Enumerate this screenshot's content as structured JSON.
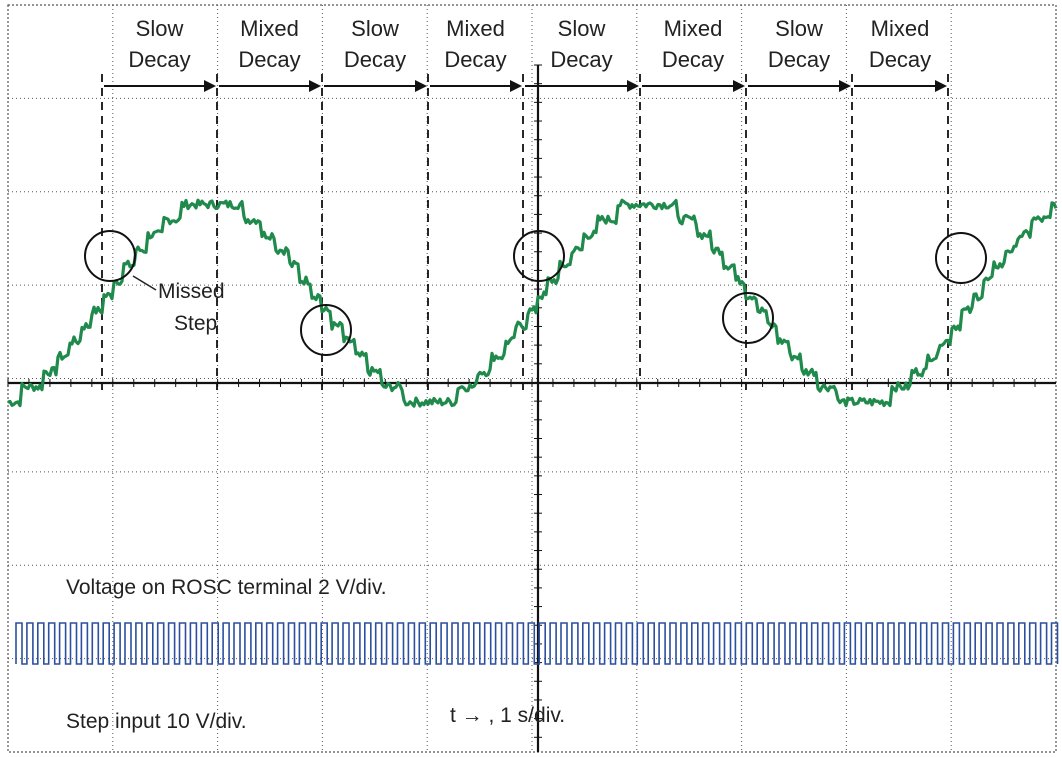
{
  "chart_data": {
    "type": "line",
    "title": "",
    "grid": true,
    "grid_divisions": {
      "x": 10,
      "y": 8
    },
    "phases": [
      "Slow Decay",
      "Mixed Decay",
      "Slow Decay",
      "Mixed Decay",
      "Slow Decay",
      "Mixed Decay",
      "Slow Decay",
      "Mixed Decay"
    ],
    "phase_lines": [
      "Slow",
      "Decay",
      "Mixed",
      "Decay"
    ],
    "annotation": {
      "line1": "Missed",
      "line2": "Step"
    },
    "channels": [
      {
        "label": "Voltage on ROSC terminal 2 V/div.",
        "color": "#1f8a4c"
      },
      {
        "label": "Step input 10 V/div.",
        "color": "#2c4fa0"
      }
    ],
    "x_axis_label": "t → , 1 s/div.",
    "series": [
      {
        "x": [
          0.0,
          0.5,
          0.9,
          1.0,
          1.5,
          2.0,
          2.1,
          3.0,
          3.2,
          4.0,
          4.5,
          5.0,
          5.5,
          6.0,
          6.3,
          7.0,
          7.1,
          8.0,
          8.5,
          9.0,
          9.1,
          10.0
        ],
        "values": [
          -0.15,
          0.5,
          1.0,
          1.45,
          1.95,
          2.2,
          2.15,
          1.0,
          0.5,
          -0.25,
          0.5,
          1.0,
          1.8,
          2.2,
          2.0,
          1.0,
          0.5,
          -0.25,
          0.5,
          1.0,
          1.75,
          2.2
        ]
      }
    ]
  }
}
